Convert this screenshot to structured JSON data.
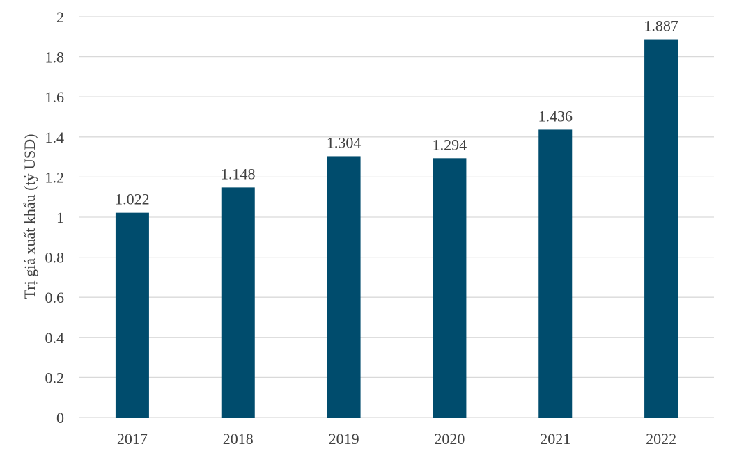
{
  "chart_data": {
    "type": "bar",
    "categories": [
      "2017",
      "2018",
      "2019",
      "2020",
      "2021",
      "2022"
    ],
    "values": [
      1.022,
      1.148,
      1.304,
      1.294,
      1.436,
      1.887
    ],
    "value_labels": [
      "1.022",
      "1.148",
      "1.304",
      "1.294",
      "1.436",
      "1.887"
    ],
    "title": "",
    "xlabel": "",
    "ylabel": "Trị giá xuất khẩu (tỷ USD)",
    "ylim": [
      0,
      2
    ],
    "yticks": [
      "0",
      "0.2",
      "0.4",
      "0.6",
      "0.8",
      "1",
      "1.2",
      "1.4",
      "1.6",
      "1.8",
      "2"
    ],
    "grid": true,
    "legend": "none",
    "bar_color": "#004c6d"
  }
}
